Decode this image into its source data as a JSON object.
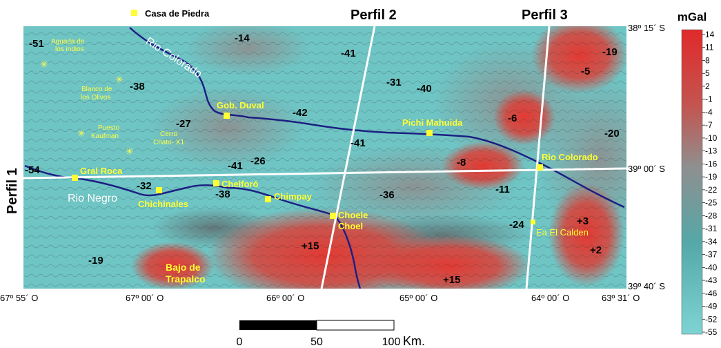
{
  "colors": {
    "high": "#d8302c",
    "low": "#6ec6c6",
    "mid": "#8b9a9c",
    "river": "#1c1f82",
    "profile": "#ffffff",
    "town_marker": "#ffff33",
    "town_label": "#ffff33"
  },
  "top_label": "Casa de Piedra",
  "profiles": [
    "Perfil 1",
    "Perfil 2",
    "Perfil 3"
  ],
  "rivers": [
    "Rio Colorado",
    "Rio Negro"
  ],
  "towns": [
    "Gob. Duval",
    "Pichi Mahuida",
    "Rio Colorado",
    "Gral Roca",
    "Chelforó",
    "Chimpay",
    "Chichinales",
    "Choele",
    "Choel",
    "Ea El Calden"
  ],
  "places": [
    "Aguada de",
    "los indios",
    "Blanco de",
    "los Olivos",
    "Puesto",
    "Kaufman",
    "Cerro",
    "Chato- X1",
    "Bajo de",
    "Trapalco"
  ],
  "anomaly_values": [
    "-51",
    "-14",
    "-41",
    "-19",
    "-38",
    "-31",
    "-40",
    "-5",
    "-42",
    "-27",
    "-6",
    "-20",
    "-41",
    "-41",
    "-26",
    "-8",
    "-54",
    "-32",
    "-38",
    "-36",
    "-11",
    "-24",
    "+3",
    "+15",
    "+2",
    "-19",
    "+15"
  ],
  "lat_labels": [
    "38º 15´ S",
    "39º 00´ S",
    "39º 40´ S"
  ],
  "lon_labels": [
    "67º 55´ O",
    "67º 00´ O",
    "66º 00´ O",
    "65º 00´ O",
    "64º 00´ O",
    "63º 31´ O"
  ],
  "colorbar": {
    "title": "mGal",
    "ticks": [
      "14",
      "11",
      "8",
      "5",
      "2",
      "-1",
      "-4",
      "-7",
      "-10",
      "-13",
      "-16",
      "-19",
      "-22",
      "-25",
      "-28",
      "-31",
      "-34",
      "-37",
      "-40",
      "-43",
      "-46",
      "-49",
      "-52",
      "-55"
    ]
  },
  "scale_bar": {
    "labels": [
      "0",
      "50",
      "100"
    ],
    "unit": "Km."
  }
}
